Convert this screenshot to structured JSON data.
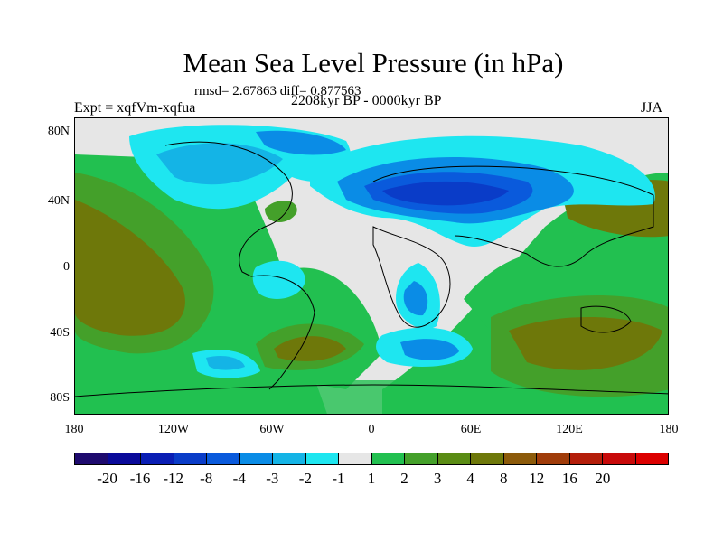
{
  "title": "Mean Sea Level Pressure (in hPa)",
  "stats": "rmsd= 2.67863 diff= 0.877563",
  "expt": "Expt = xqfVm-xqfua",
  "period": "2208kyr BP - 0000kyr BP",
  "season": "JJA",
  "lat_labels": [
    "80N",
    "40N",
    "0",
    "40S",
    "80S"
  ],
  "lon_labels": [
    "180",
    "120W",
    "60W",
    "0",
    "60E",
    "120E",
    "180"
  ],
  "colorbar": {
    "colors": [
      "#1e0a6e",
      "#0a0a9a",
      "#0a1eb4",
      "#0a3cc8",
      "#0a5adc",
      "#0a8ce6",
      "#14b4e6",
      "#1ee6f0",
      "#e6e6e6",
      "#22c050",
      "#44a02a",
      "#5a8c14",
      "#6e780a",
      "#8c5a0a",
      "#a03c0a",
      "#b41e0a",
      "#c80a0a",
      "#dc0000"
    ],
    "labels": [
      "-20",
      "-16",
      "-12",
      "-8",
      "-4",
      "-3",
      "-2",
      "-1",
      "1",
      "2",
      "3",
      "4",
      "8",
      "12",
      "16",
      "20"
    ]
  }
}
